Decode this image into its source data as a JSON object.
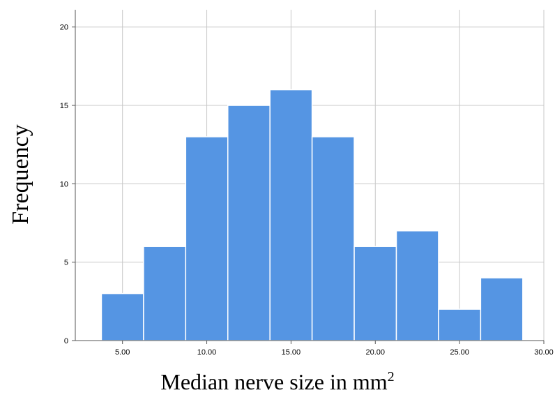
{
  "chart_data": {
    "type": "bar",
    "title": "",
    "xlabel": "Median nerve size in mm",
    "xlabel_superscript": "2",
    "ylabel": "Frequency",
    "bin_width": 2.5,
    "bins": [
      {
        "start": 3.75,
        "end": 6.25,
        "count": 3
      },
      {
        "start": 6.25,
        "end": 8.75,
        "count": 6
      },
      {
        "start": 8.75,
        "end": 11.25,
        "count": 13
      },
      {
        "start": 11.25,
        "end": 13.75,
        "count": 15
      },
      {
        "start": 13.75,
        "end": 16.25,
        "count": 16
      },
      {
        "start": 16.25,
        "end": 18.75,
        "count": 13
      },
      {
        "start": 18.75,
        "end": 21.25,
        "count": 6
      },
      {
        "start": 21.25,
        "end": 23.75,
        "count": 7
      },
      {
        "start": 23.75,
        "end": 26.25,
        "count": 2
      },
      {
        "start": 26.25,
        "end": 28.75,
        "count": 4
      }
    ],
    "xlim": [
      2.2,
      30.0
    ],
    "ylim": [
      0,
      21.1
    ],
    "x_ticks": [
      5,
      10,
      15,
      20,
      25,
      30
    ],
    "x_tick_labels": [
      "5.00",
      "10.00",
      "15.00",
      "20.00",
      "25.00",
      "30.00"
    ],
    "y_ticks": [
      0,
      5,
      10,
      15,
      20
    ],
    "y_tick_labels": [
      "0",
      "5",
      "10",
      "15",
      "20"
    ],
    "grid": true,
    "legend": "none",
    "bar_color": "#5595e3",
    "grid_color": "#c8c8c8"
  }
}
